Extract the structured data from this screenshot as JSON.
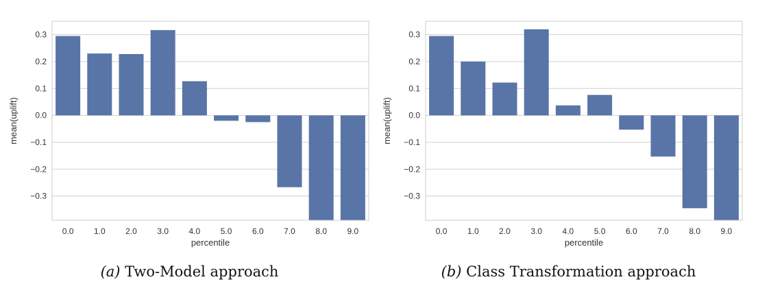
{
  "colors": {
    "bar": "#5975a7",
    "grid": "#cfcfcf",
    "axis_text": "#333333",
    "frame": "#cccccc"
  },
  "captions": [
    {
      "letter": "(a)",
      "text": "Two-Model approach"
    },
    {
      "letter": "(b)",
      "text": "Class Transformation approach"
    }
  ],
  "chart_data": [
    {
      "type": "bar",
      "title": "",
      "xlabel": "percentile",
      "ylabel": "mean(uplift)",
      "categories": [
        "0.0",
        "1.0",
        "2.0",
        "3.0",
        "4.0",
        "5.0",
        "6.0",
        "7.0",
        "8.0",
        "9.0"
      ],
      "values": [
        0.295,
        0.23,
        0.228,
        0.317,
        0.127,
        -0.02,
        -0.025,
        -0.267,
        -0.39,
        -0.39
      ],
      "ylim": [
        -0.39,
        0.35
      ],
      "yticks": [
        0.3,
        0.2,
        0.1,
        0.0,
        -0.1,
        -0.2,
        -0.3
      ],
      "ytick_labels": [
        "0.3",
        "0.2",
        "0.1",
        "0.0",
        "−0.1",
        "−0.2",
        "−0.3"
      ],
      "grid": "horizontal"
    },
    {
      "type": "bar",
      "title": "",
      "xlabel": "percentile",
      "ylabel": "mean(uplift)",
      "categories": [
        "0.0",
        "1.0",
        "2.0",
        "3.0",
        "4.0",
        "5.0",
        "6.0",
        "7.0",
        "8.0",
        "9.0"
      ],
      "values": [
        0.295,
        0.2,
        0.122,
        0.32,
        0.037,
        0.076,
        -0.053,
        -0.153,
        -0.345,
        -0.39
      ],
      "ylim": [
        -0.39,
        0.35
      ],
      "yticks": [
        0.3,
        0.2,
        0.1,
        0.0,
        -0.1,
        -0.2,
        -0.3
      ],
      "ytick_labels": [
        "0.3",
        "0.2",
        "0.1",
        "0.0",
        "−0.1",
        "−0.2",
        "−0.3"
      ],
      "grid": "horizontal"
    }
  ]
}
